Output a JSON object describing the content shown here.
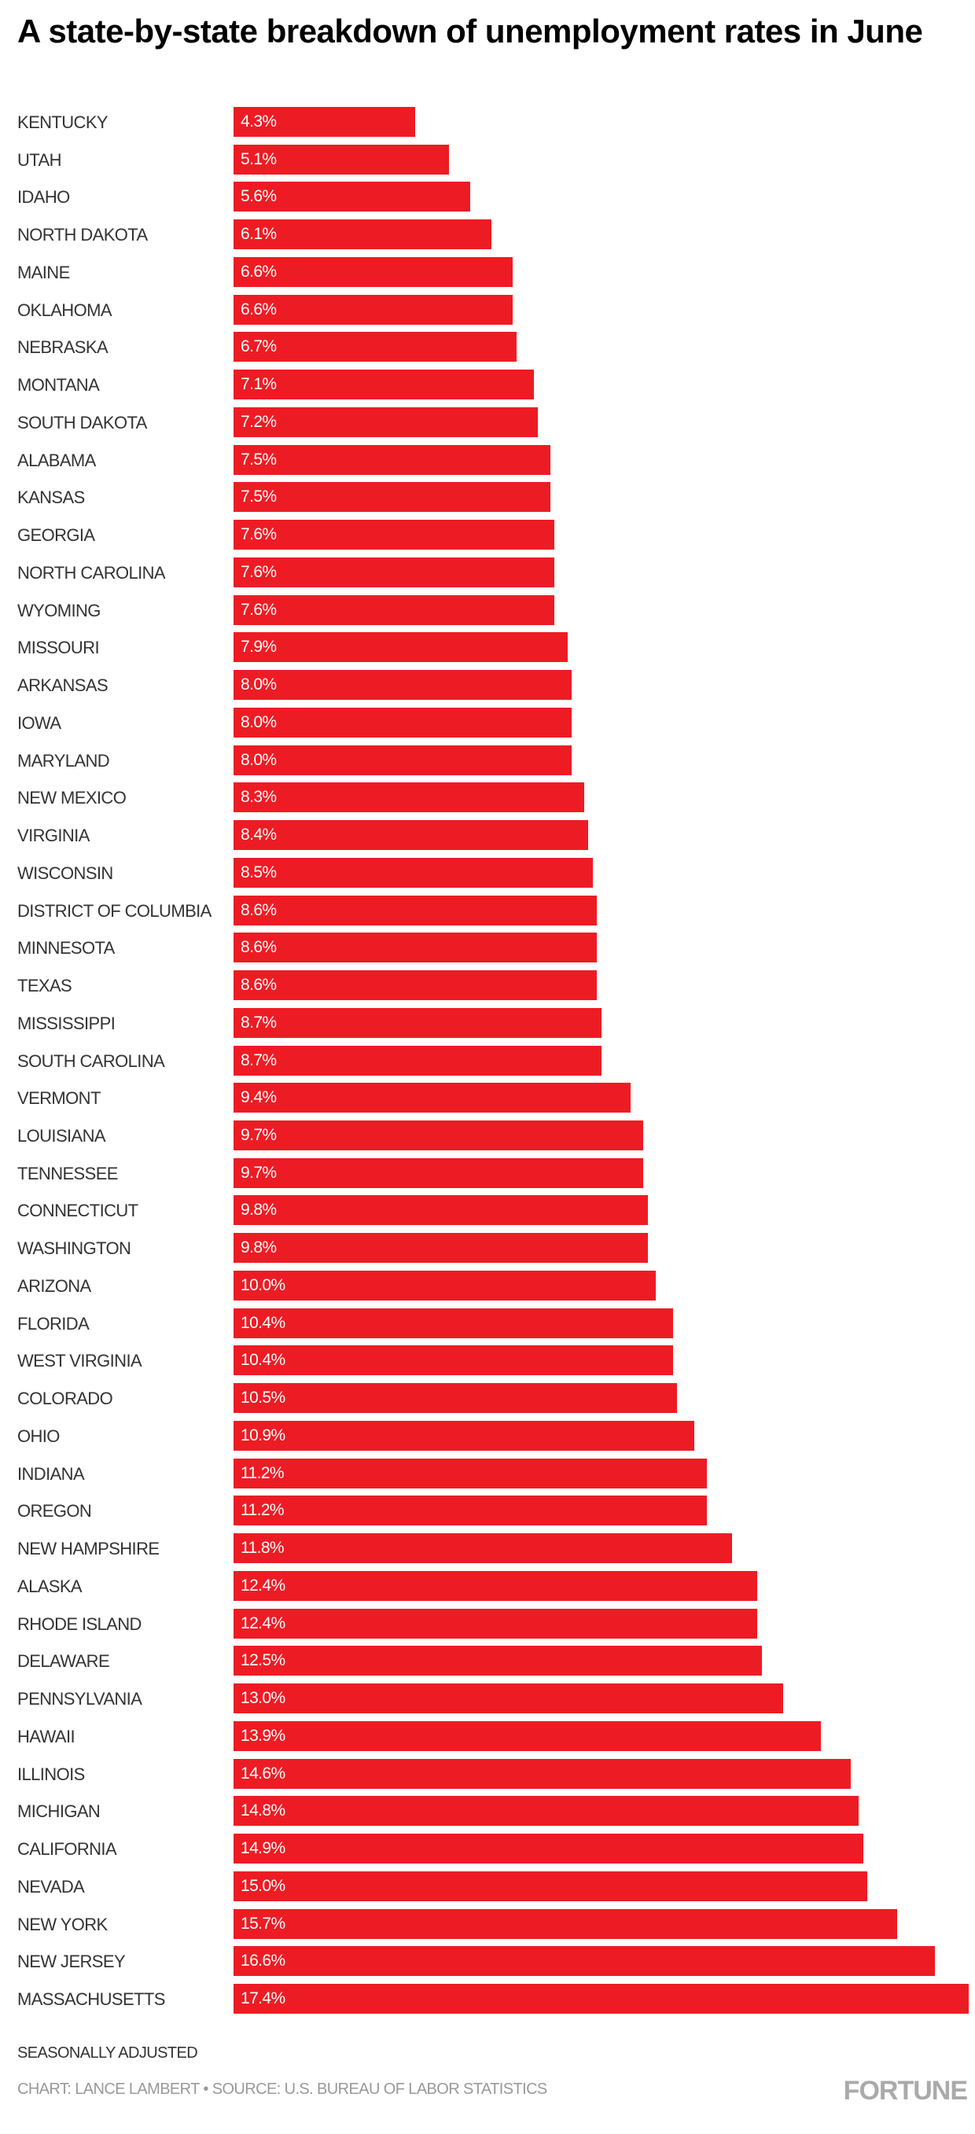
{
  "chart_data": {
    "type": "bar",
    "orientation": "horizontal",
    "title": "A state-by-state breakdown of unemployment rates in June",
    "categories": [
      "KENTUCKY",
      "UTAH",
      "IDAHO",
      "NORTH DAKOTA",
      "MAINE",
      "OKLAHOMA",
      "NEBRASKA",
      "MONTANA",
      "SOUTH DAKOTA",
      "ALABAMA",
      "KANSAS",
      "GEORGIA",
      "NORTH CAROLINA",
      "WYOMING",
      "MISSOURI",
      "ARKANSAS",
      "IOWA",
      "MARYLAND",
      "NEW MEXICO",
      "VIRGINIA",
      "WISCONSIN",
      "DISTRICT OF COLUMBIA",
      "MINNESOTA",
      "TEXAS",
      "MISSISSIPPI",
      "SOUTH CAROLINA",
      "VERMONT",
      "LOUISIANA",
      "TENNESSEE",
      "CONNECTICUT",
      "WASHINGTON",
      "ARIZONA",
      "FLORIDA",
      "WEST VIRGINIA",
      "COLORADO",
      "OHIO",
      "INDIANA",
      "OREGON",
      "NEW HAMPSHIRE",
      "ALASKA",
      "RHODE ISLAND",
      "DELAWARE",
      "PENNSYLVANIA",
      "HAWAII",
      "ILLINOIS",
      "MICHIGAN",
      "CALIFORNIA",
      "NEVADA",
      "NEW YORK",
      "NEW JERSEY",
      "MASSACHUSETTS"
    ],
    "values": [
      4.3,
      5.1,
      5.6,
      6.1,
      6.6,
      6.6,
      6.7,
      7.1,
      7.2,
      7.5,
      7.5,
      7.6,
      7.6,
      7.6,
      7.9,
      8.0,
      8.0,
      8.0,
      8.3,
      8.4,
      8.5,
      8.6,
      8.6,
      8.6,
      8.7,
      8.7,
      9.4,
      9.7,
      9.7,
      9.8,
      9.8,
      10.0,
      10.4,
      10.4,
      10.5,
      10.9,
      11.2,
      11.2,
      11.8,
      12.4,
      12.4,
      12.5,
      13.0,
      13.9,
      14.6,
      14.8,
      14.9,
      15.0,
      15.7,
      16.6,
      17.4
    ],
    "value_suffix": "%",
    "xlim": [
      0,
      17.4
    ],
    "grid": false,
    "bar_color": "#ED1C24"
  },
  "footer": {
    "note": "SEASONALLY ADJUSTED",
    "credit": "CHART: LANCE LAMBERT • SOURCE: U.S. BUREAU OF LABOR STATISTICS",
    "logo": "FORTUNE"
  }
}
